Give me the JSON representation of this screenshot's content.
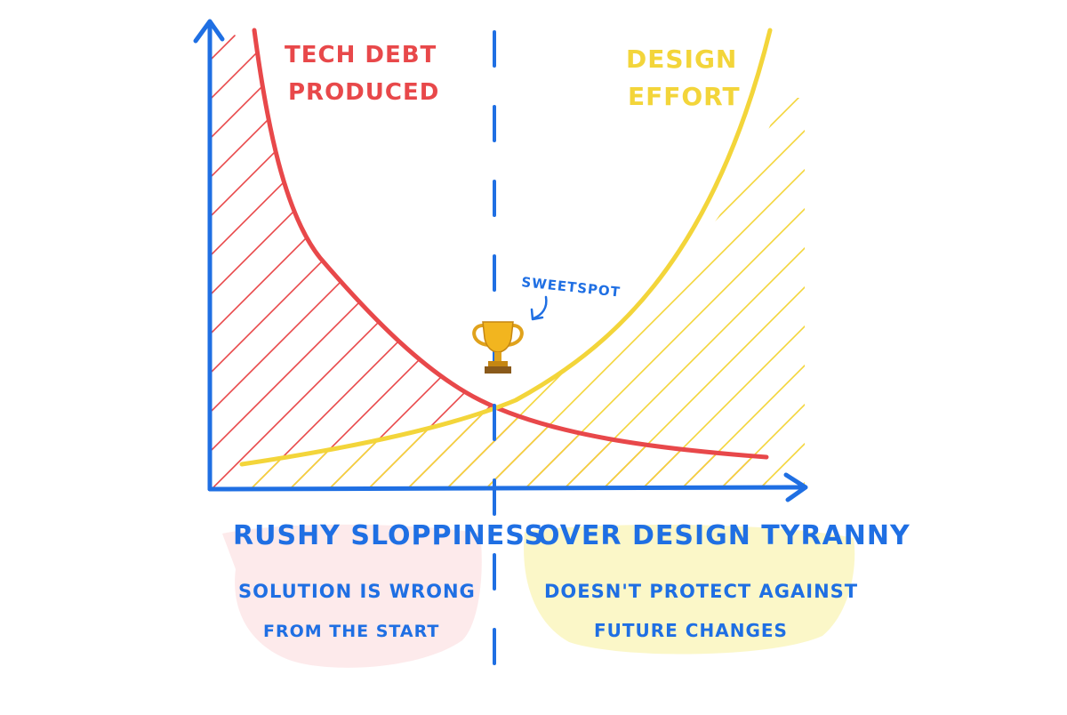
{
  "labels": {
    "tech_debt_line1": "TECH DEBT",
    "tech_debt_line2": "PRODUCED",
    "design_line1": "DESIGN",
    "design_line2": "EFFORT",
    "sweetspot": "SWEETSPOT"
  },
  "sections": {
    "left": {
      "title": "RUSHY SLOPPINESS",
      "desc_line1": "SOLUTION IS WRONG",
      "desc_line2": "FROM THE START"
    },
    "right": {
      "title": "OVER DESIGN TYRANNY",
      "desc_line1": "DOESN'T PROTECT AGAINST",
      "desc_line2": "FUTURE CHANGES"
    }
  },
  "icons": {
    "trophy": "trophy-icon",
    "arrow": "curved-arrow-icon"
  },
  "colors": {
    "axis": "#1f6fe3",
    "tech_debt": "#e8484a",
    "design_effort": "#f3d53a",
    "highlight_left": "#fde6e8",
    "highlight_right": "#fbf6c2",
    "trophy": "#e0a21c"
  }
}
